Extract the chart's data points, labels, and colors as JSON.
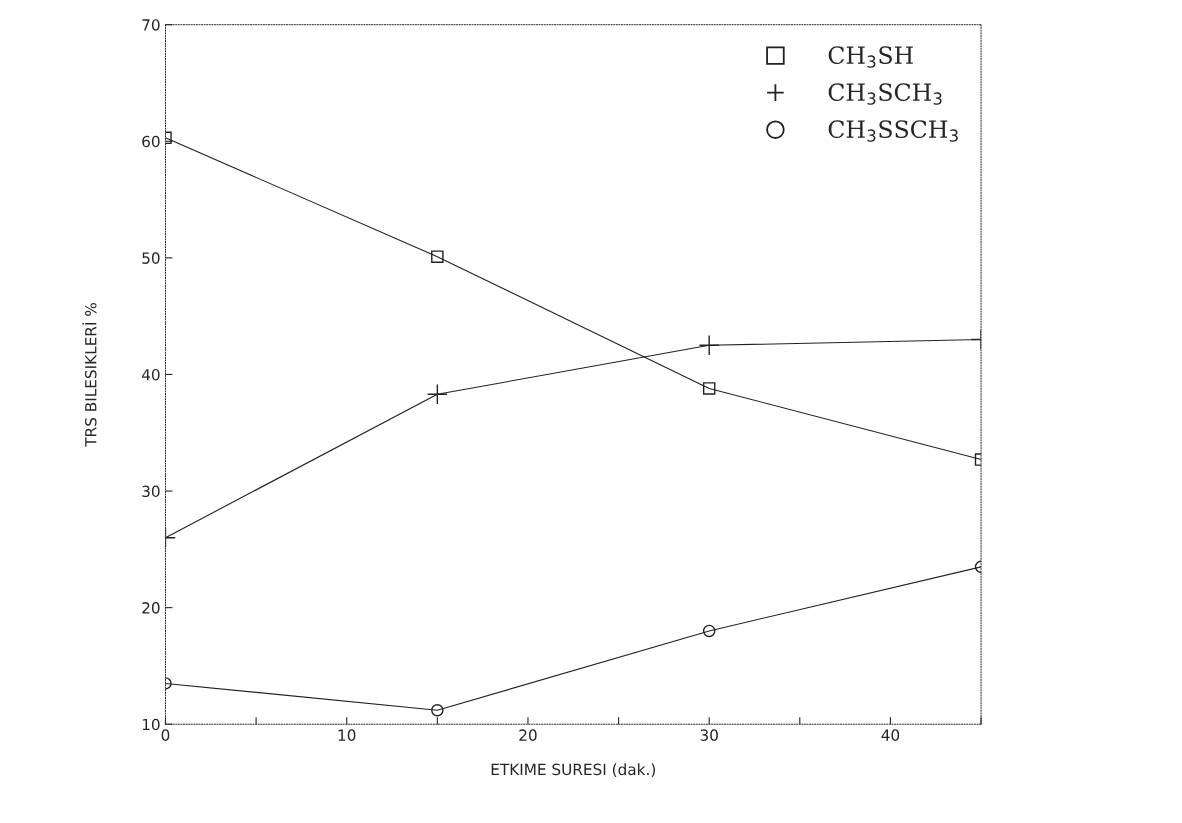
{
  "chart_data": {
    "type": "line",
    "xlabel": "ETKIME SURESI (dak.)",
    "ylabel": "TRS BILESIKLERİ %",
    "x": [
      0,
      15,
      30,
      45
    ],
    "series": [
      {
        "name": "CH$_{3}$SH",
        "color": "#222222",
        "marker": "square",
        "values": [
          60.3,
          50.1,
          38.8,
          32.7
        ]
      },
      {
        "name": "CH$_{3}$SCH$_{3}$",
        "color": "#222222",
        "marker": "cross",
        "values": [
          26,
          38.3,
          42.5,
          43
        ]
      },
      {
        "name": "CH$_{3}$SSCH$_{3}$",
        "color": "#222222",
        "marker": "circle",
        "values": [
          13.5,
          11.2,
          18,
          23.5
        ]
      }
    ],
    "xlim": [
      0,
      45
    ],
    "ylim": [
      10,
      70
    ],
    "xticks": [
      0,
      {
        "value": 5,
        "label": null
      },
      10,
      {
        "value": 15,
        "label": null
      },
      20,
      {
        "value": 25,
        "label": null
      },
      30,
      {
        "value": 35,
        "label": null
      },
      40,
      {
        "value": 45,
        "label": null
      }
    ],
    "yticks": [
      10,
      20,
      30,
      40,
      50,
      60,
      70
    ],
    "grid": false,
    "legend": "top right",
    "line_style": "solid"
  }
}
